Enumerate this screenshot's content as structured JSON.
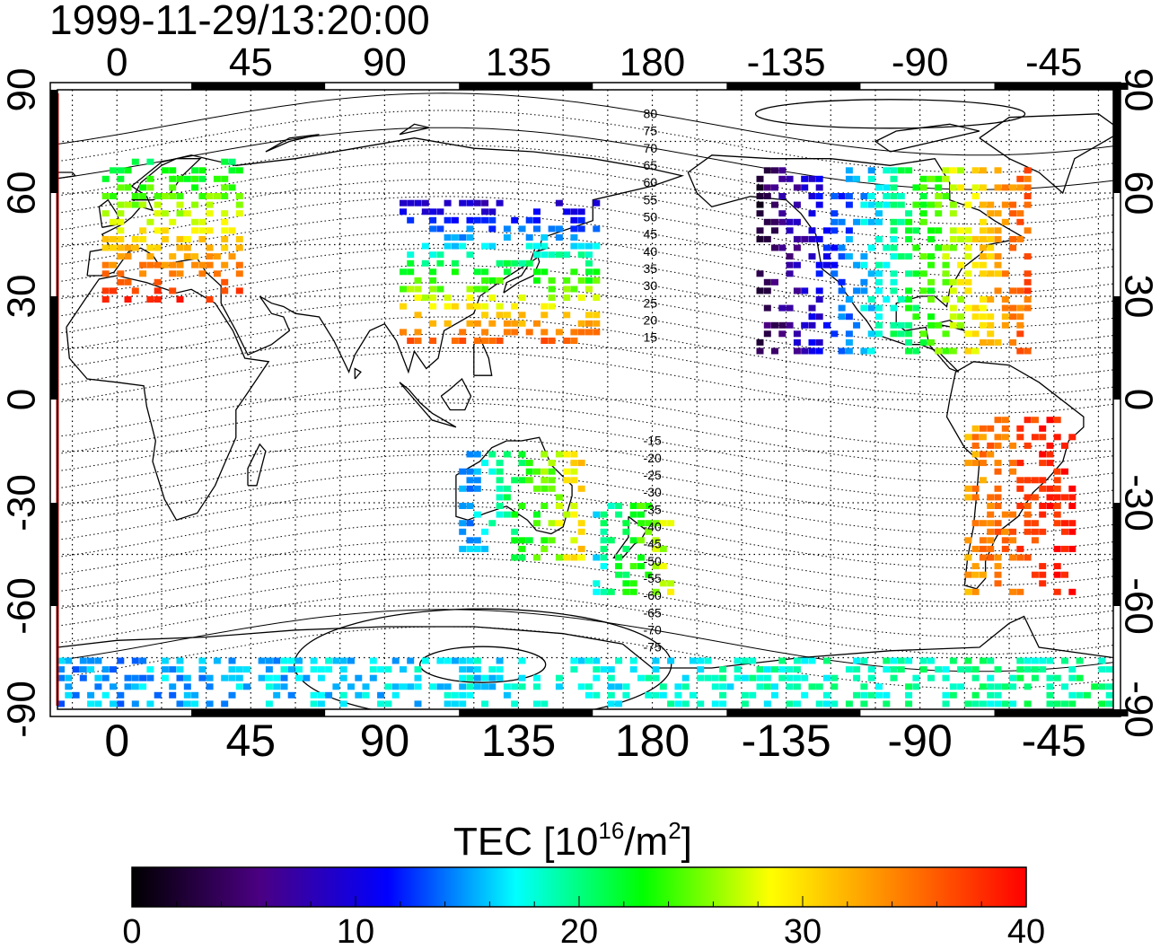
{
  "title": "1999-11-29/13:20:00",
  "map": {
    "lon_ticks_top": [
      "0",
      "45",
      "90",
      "135",
      "180",
      "-135",
      "-90",
      "-45"
    ],
    "lon_ticks_bottom": [
      "0",
      "45",
      "90",
      "135",
      "180",
      "-135",
      "-90",
      "-45"
    ],
    "lat_ticks_left": [
      "90",
      "60",
      "30",
      "0",
      "-30",
      "-60",
      "-90"
    ],
    "lat_ticks_right": [
      "90",
      "60",
      "30",
      "0",
      "-30",
      "-60",
      "-90"
    ],
    "lon_range": [
      -20,
      335
    ],
    "lat_range": [
      -90,
      90
    ],
    "contour_labels_north": [
      "80",
      "75",
      "70",
      "65",
      "60",
      "55",
      "50",
      "45",
      "40",
      "35",
      "30",
      "25",
      "20",
      "15"
    ],
    "contour_labels_south": [
      "-15",
      "-20",
      "-25",
      "-30",
      "-35",
      "-40",
      "-45",
      "-50",
      "-55",
      "-60",
      "-65",
      "-70",
      "-75"
    ],
    "grid": "dotted"
  },
  "colorbar": {
    "title_main": "TEC  [10",
    "title_exp1": "16",
    "title_mid": "/m",
    "title_exp2": "2",
    "title_end": "]",
    "tick_labels": [
      "0",
      "10",
      "20",
      "30",
      "40"
    ],
    "range": [
      0,
      40
    ],
    "colormap": [
      "#000000",
      "#4b0082",
      "#0000ff",
      "#00ffff",
      "#00ff00",
      "#ffff00",
      "#ff8000",
      "#ff0000"
    ]
  },
  "chart_data": {
    "type": "heatmap",
    "title": "1999-11-29/13:20:00",
    "variable": "TEC  [10^16/m^2]",
    "xlim": [
      -20,
      335
    ],
    "ylim": [
      -90,
      90
    ],
    "vrange": [
      0,
      40
    ],
    "regions": [
      {
        "lon": [
          -5,
          40
        ],
        "lat": [
          30,
          72
        ],
        "tec": [
          20,
          38
        ]
      },
      {
        "lon": [
          95,
          160
        ],
        "lat": [
          18,
          60
        ],
        "tec": [
          7,
          36
        ]
      },
      {
        "lon": [
          215,
          305
        ],
        "lat": [
          15,
          68
        ],
        "tec": [
          3,
          36
        ]
      },
      {
        "lon": [
          285,
          320
        ],
        "lat": [
          -55,
          -5
        ],
        "tec": [
          33,
          40
        ]
      },
      {
        "lon": [
          115,
          155
        ],
        "lat": [
          -45,
          -15
        ],
        "tec": [
          14,
          30
        ]
      },
      {
        "lon": [
          160,
          185
        ],
        "lat": [
          -55,
          -30
        ],
        "tec": [
          18,
          28
        ]
      },
      {
        "lon": [
          -20,
          335
        ],
        "lat": [
          -90,
          -75
        ],
        "tec": [
          15,
          20
        ]
      }
    ]
  }
}
